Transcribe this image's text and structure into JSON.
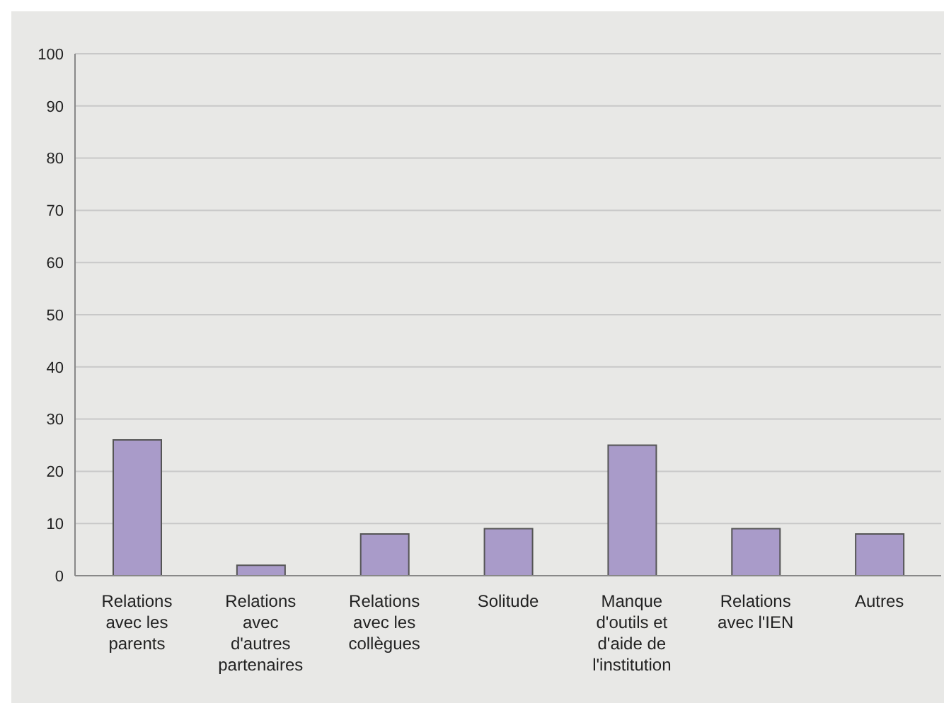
{
  "chart_data": {
    "type": "bar",
    "categories": [
      "Relations avec les parents",
      "Relations avec d'autres partenaires",
      "Relations avec les collègues",
      "Solitude",
      "Manque d'outils et d'aide de l'institution",
      "Relations avec l'IEN",
      "Autres"
    ],
    "values": [
      26,
      2,
      8,
      9,
      25,
      9,
      8
    ],
    "color": "#a99bc9",
    "ylim": [
      0,
      100
    ],
    "yticks": [
      0,
      10,
      20,
      30,
      40,
      50,
      60,
      70,
      80,
      90,
      100
    ],
    "grid": "y"
  }
}
